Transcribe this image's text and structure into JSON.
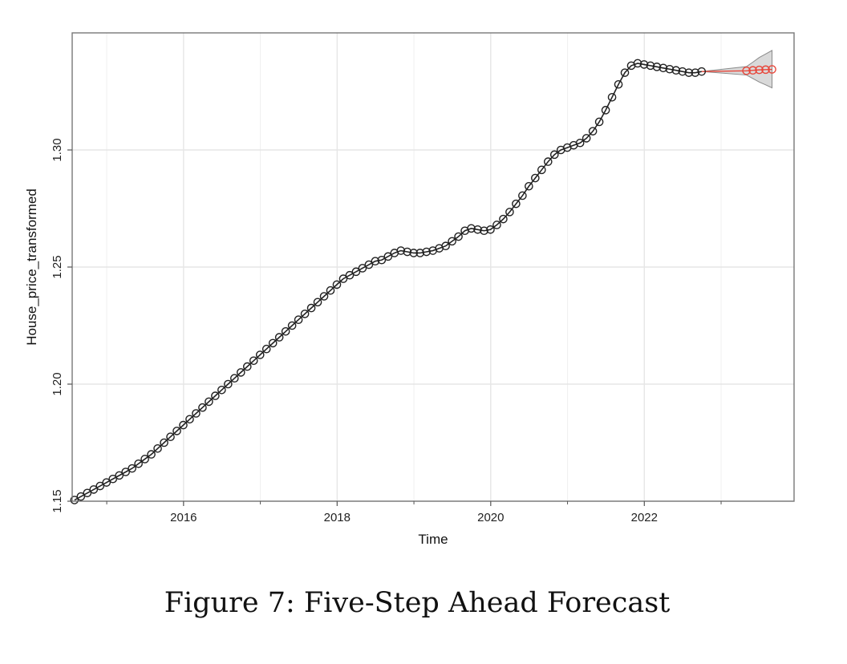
{
  "caption": "Figure 7: Five-Step Ahead Forecast",
  "chart_data": {
    "type": "line",
    "xlabel": "Time",
    "ylabel": "House_price_transformed",
    "xlim": [
      2014.55,
      2023.95
    ],
    "ylim": [
      1.15,
      1.35
    ],
    "x_ticks": [
      2016,
      2018,
      2020,
      2022
    ],
    "x_tick_labels": [
      "2016",
      "2018",
      "2020",
      "2022"
    ],
    "y_ticks": [
      1.15,
      1.2,
      1.25,
      1.3
    ],
    "y_tick_labels": [
      "1.15",
      "1.20",
      "1.25",
      "1.30"
    ],
    "grid": true,
    "colors": {
      "observed": "#222222",
      "forecast": "#e8463a",
      "interval_fill": "#c9c9c9",
      "interval_edge": "#8a8a8a",
      "grid": "#e6e6e6"
    },
    "series": [
      {
        "type": "observed",
        "start_year": 2014.58,
        "step": 0.0833333,
        "values": [
          1.1505,
          1.152,
          1.1535,
          1.155,
          1.1565,
          1.158,
          1.1595,
          1.161,
          1.1625,
          1.164,
          1.166,
          1.168,
          1.17,
          1.1725,
          1.175,
          1.1775,
          1.18,
          1.1825,
          1.185,
          1.1875,
          1.19,
          1.1925,
          1.195,
          1.1975,
          1.2,
          1.2025,
          1.205,
          1.2075,
          1.21,
          1.2125,
          1.215,
          1.2175,
          1.22,
          1.2225,
          1.225,
          1.2275,
          1.23,
          1.2325,
          1.235,
          1.2375,
          1.24,
          1.2425,
          1.245,
          1.2465,
          1.248,
          1.2495,
          1.251,
          1.2525,
          1.253,
          1.2545,
          1.256,
          1.257,
          1.2565,
          1.256,
          1.256,
          1.2565,
          1.257,
          1.258,
          1.259,
          1.261,
          1.263,
          1.2655,
          1.2665,
          1.266,
          1.2655,
          1.266,
          1.268,
          1.2705,
          1.2735,
          1.277,
          1.2805,
          1.2845,
          1.288,
          1.2915,
          1.295,
          1.298,
          1.3,
          1.301,
          1.302,
          1.303,
          1.305,
          1.308,
          1.312,
          1.317,
          1.3225,
          1.328,
          1.333,
          1.336,
          1.337,
          1.3365,
          1.336,
          1.3355,
          1.335,
          1.3345,
          1.334,
          1.3335,
          1.333,
          1.333,
          1.3335
        ]
      },
      {
        "type": "forecast",
        "start_year": 2023.33,
        "step": 0.0833333,
        "values": [
          1.3338,
          1.334,
          1.3342,
          1.3343,
          1.3344
        ],
        "lower": [
          1.332,
          1.3305,
          1.329,
          1.3278,
          1.3265
        ],
        "upper": [
          1.3356,
          1.3375,
          1.3395,
          1.341,
          1.3425
        ]
      }
    ]
  }
}
